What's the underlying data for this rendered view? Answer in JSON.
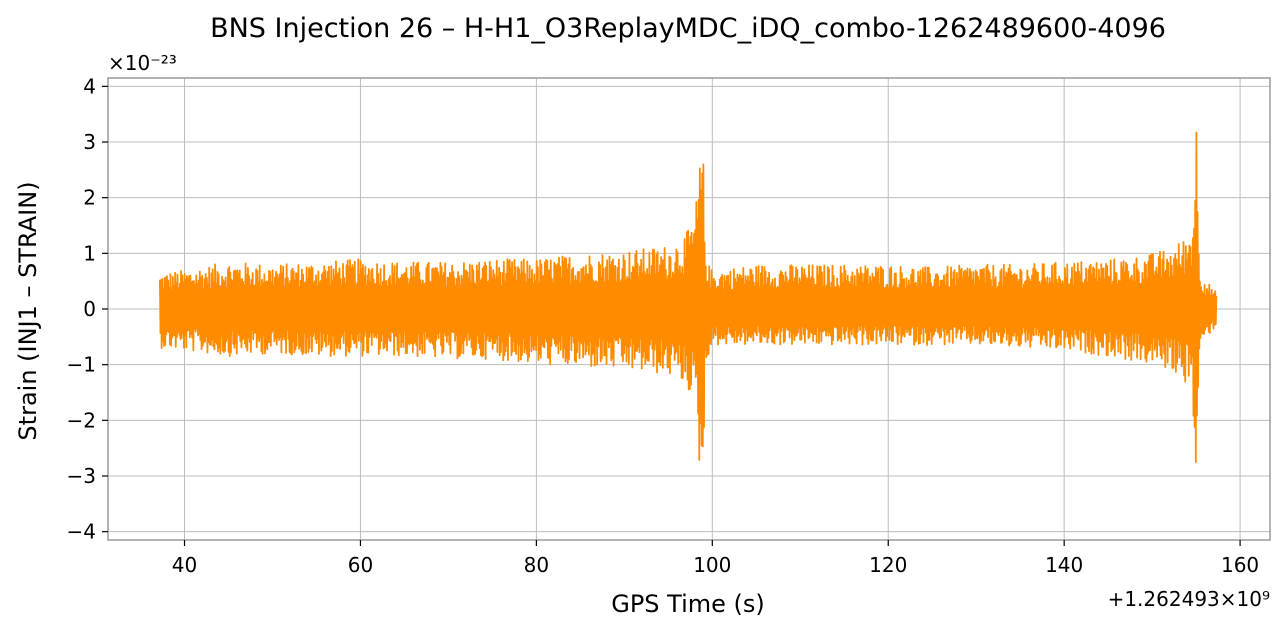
{
  "chart_data": {
    "type": "line",
    "title": "BNS Injection 26 – H-H1_O3ReplayMDC_iDQ_combo-1262489600-4096",
    "xlabel": "GPS Time (s)",
    "ylabel": "Strain (INJ1 – STRAIN)",
    "x_offset_label": "+1.262493×10⁹",
    "y_scale_label": "×10⁻²³",
    "xlim": [
      31.3,
      163.4
    ],
    "ylim": [
      -4.15,
      4.15
    ],
    "xticks": [
      40,
      60,
      80,
      100,
      120,
      140,
      160
    ],
    "yticks": [
      -4,
      -3,
      -2,
      -1,
      0,
      1,
      2,
      3,
      4
    ],
    "grid": true,
    "series": [
      {
        "color": "#ff8c00",
        "x_start": 37.2,
        "x_end": 157.3,
        "envelope_x": [
          37.2,
          40,
          45,
          50,
          55,
          60,
          65,
          70,
          75,
          80,
          85,
          90,
          93,
          95,
          96,
          97,
          97.8,
          98.4,
          98.8,
          99.0,
          99.2,
          99.6,
          100,
          105,
          110,
          115,
          120,
          125,
          130,
          135,
          140,
          145,
          148,
          150,
          152,
          153,
          154,
          154.6,
          155.0,
          155.2,
          155.5,
          156,
          157.3
        ],
        "envelope_upper": [
          0.65,
          0.7,
          0.85,
          0.8,
          0.85,
          0.9,
          0.85,
          0.85,
          0.9,
          0.9,
          1.0,
          1.05,
          1.1,
          1.15,
          1.25,
          1.35,
          1.6,
          2.2,
          3.25,
          2.6,
          1.2,
          0.8,
          0.7,
          0.8,
          0.8,
          0.8,
          0.8,
          0.75,
          0.8,
          0.8,
          0.85,
          0.9,
          0.95,
          1.0,
          1.1,
          1.2,
          1.35,
          1.6,
          3.75,
          2.0,
          0.7,
          0.55,
          0.3
        ],
        "envelope_lower": [
          -0.7,
          -0.75,
          -0.85,
          -0.8,
          -0.85,
          -0.85,
          -0.85,
          -0.9,
          -0.9,
          -1.0,
          -1.05,
          -1.1,
          -1.15,
          -1.2,
          -1.25,
          -1.4,
          -1.6,
          -2.4,
          -3.78,
          -2.8,
          -1.2,
          -0.8,
          -0.65,
          -0.65,
          -0.65,
          -0.65,
          -0.65,
          -0.65,
          -0.65,
          -0.7,
          -0.75,
          -0.85,
          -0.95,
          -1.0,
          -1.1,
          -1.2,
          -1.35,
          -1.6,
          -3.4,
          -2.0,
          -0.7,
          -0.55,
          -0.3
        ]
      }
    ]
  }
}
